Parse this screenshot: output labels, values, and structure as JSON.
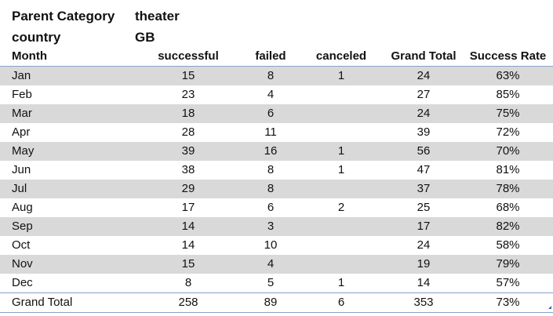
{
  "filters": [
    {
      "label": "Parent Category",
      "value": "theater"
    },
    {
      "label": "country",
      "value": "GB"
    }
  ],
  "table": {
    "headers": [
      "Month",
      "successful",
      "failed",
      "canceled",
      "Grand Total",
      "Success Rate"
    ],
    "rows": [
      [
        "Jan",
        "15",
        "8",
        "1",
        "24",
        "63%"
      ],
      [
        "Feb",
        "23",
        "4",
        "",
        "27",
        "85%"
      ],
      [
        "Mar",
        "18",
        "6",
        "",
        "24",
        "75%"
      ],
      [
        "Apr",
        "28",
        "11",
        "",
        "39",
        "72%"
      ],
      [
        "May",
        "39",
        "16",
        "1",
        "56",
        "70%"
      ],
      [
        "Jun",
        "38",
        "8",
        "1",
        "47",
        "81%"
      ],
      [
        "Jul",
        "29",
        "8",
        "",
        "37",
        "78%"
      ],
      [
        "Aug",
        "17",
        "6",
        "2",
        "25",
        "68%"
      ],
      [
        "Sep",
        "14",
        "3",
        "",
        "17",
        "82%"
      ],
      [
        "Oct",
        "14",
        "10",
        "",
        "24",
        "58%"
      ],
      [
        "Nov",
        "15",
        "4",
        "",
        "19",
        "79%"
      ],
      [
        "Dec",
        "8",
        "5",
        "1",
        "14",
        "57%"
      ]
    ],
    "total": [
      "Grand Total",
      "258",
      "89",
      "6",
      "353",
      "73%"
    ]
  },
  "colors": {
    "band": "#d9d9d9",
    "rule": "#8aa0c8"
  }
}
